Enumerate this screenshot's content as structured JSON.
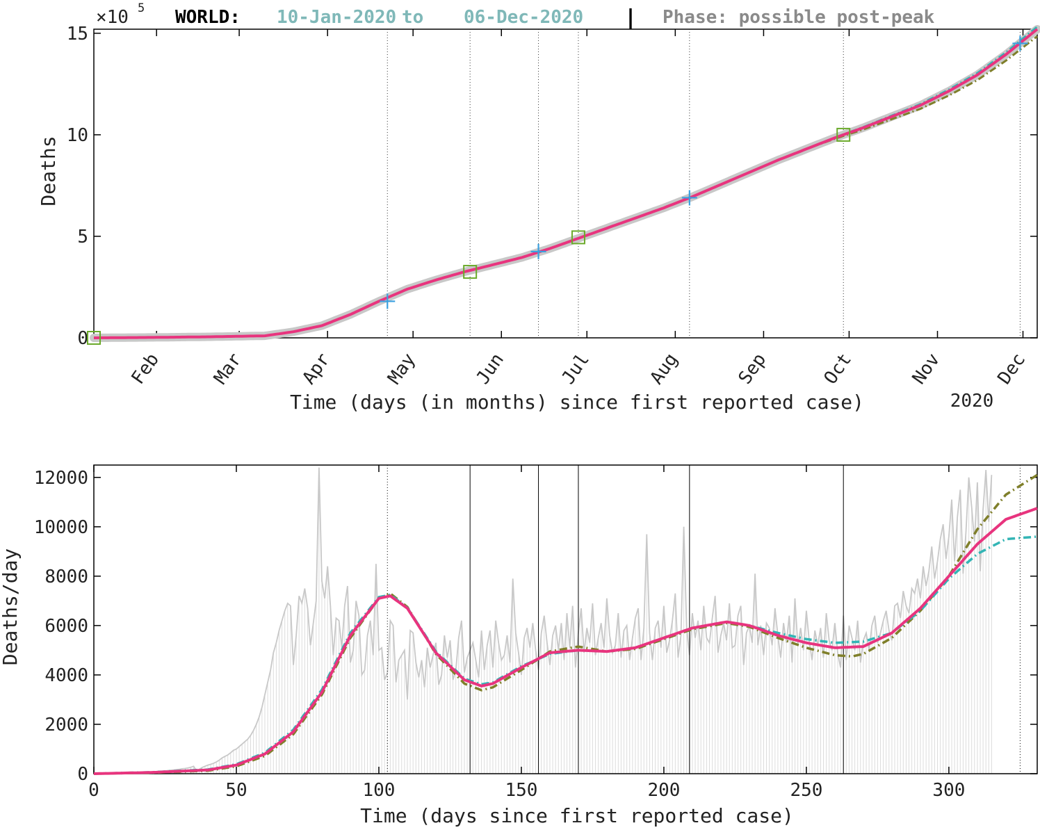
{
  "header": {
    "multiplier_base": "×10",
    "multiplier_exp": "5",
    "region": "WORLD:",
    "range_start": "10-Jan-2020",
    "range_to": "to",
    "range_end": "06-Dec-2020",
    "separator": "|",
    "phase": "Phase: possible post-peak"
  },
  "colors": {
    "fit_magenta": "#e8347e",
    "cyan_dashdot": "#33b5b5",
    "olive_dashdot": "#7f7f2a",
    "raw_gray": "#c8c8c8",
    "marker_plus": "#3aa0e0",
    "marker_square": "#6aaa2a",
    "title_teal": "#7fb8b8",
    "phase_gray": "#8a8a8a"
  },
  "chart_data": [
    {
      "type": "line",
      "title": "",
      "xlabel": "Time (days (in months) since first reported case)",
      "ylabel": "Deaths",
      "y_multiplier": "×10^5",
      "year_label": "2020",
      "xlim": [
        0,
        331
      ],
      "ylim": [
        0,
        15.2
      ],
      "month_ticks": [
        {
          "label": "Feb",
          "day": 22
        },
        {
          "label": "Mar",
          "day": 51
        },
        {
          "label": "Apr",
          "day": 82
        },
        {
          "label": "May",
          "day": 112
        },
        {
          "label": "Jun",
          "day": 143
        },
        {
          "label": "Jul",
          "day": 173
        },
        {
          "label": "Aug",
          "day": 204
        },
        {
          "label": "Sep",
          "day": 235
        },
        {
          "label": "Oct",
          "day": 265
        },
        {
          "label": "Nov",
          "day": 296
        },
        {
          "label": "Dec",
          "day": 326
        }
      ],
      "yticks": [
        0,
        5,
        10,
        15
      ],
      "grid": false,
      "phase_lines": [
        103,
        132,
        156,
        170,
        209,
        263,
        325
      ],
      "series": [
        {
          "x": [
            0,
            20,
            40,
            60,
            70,
            80,
            90,
            100,
            110,
            120,
            130,
            140,
            150,
            160,
            170,
            180,
            190,
            200,
            210,
            220,
            230,
            240,
            250,
            260,
            270,
            280,
            290,
            300,
            310,
            320,
            331
          ],
          "y": [
            0,
            0.02,
            0.05,
            0.1,
            0.3,
            0.6,
            1.15,
            1.8,
            2.4,
            2.85,
            3.25,
            3.6,
            3.95,
            4.4,
            4.9,
            5.4,
            5.9,
            6.4,
            6.95,
            7.55,
            8.15,
            8.75,
            9.3,
            9.85,
            10.35,
            10.9,
            11.45,
            12.15,
            12.95,
            13.95,
            15.2
          ]
        }
      ],
      "markers_plus": [
        {
          "x": 103,
          "y": 1.8
        },
        {
          "x": 156,
          "y": 4.25
        },
        {
          "x": 209,
          "y": 6.9
        },
        {
          "x": 325,
          "y": 14.5
        }
      ],
      "markers_square": [
        {
          "x": 0,
          "y": 0
        },
        {
          "x": 132,
          "y": 3.25
        },
        {
          "x": 170,
          "y": 4.95
        },
        {
          "x": 263,
          "y": 10.0
        }
      ]
    },
    {
      "type": "line",
      "title": "",
      "xlabel": "Time (days since first reported case)",
      "ylabel": "Deaths/day",
      "xlim": [
        0,
        331
      ],
      "ylim": [
        0,
        12500
      ],
      "xticks": [
        0,
        50,
        100,
        150,
        200,
        250,
        300
      ],
      "yticks": [
        0,
        2000,
        4000,
        6000,
        8000,
        10000,
        12000
      ],
      "grid": false,
      "phase_lines": [
        103,
        132,
        156,
        170,
        209,
        263,
        325
      ],
      "series": [
        {
          "x": [
            0,
            20,
            40,
            50,
            60,
            70,
            80,
            90,
            100,
            104,
            110,
            120,
            130,
            136,
            140,
            150,
            160,
            170,
            180,
            190,
            200,
            210,
            222,
            230,
            240,
            250,
            260,
            270,
            280,
            290,
            300,
            310,
            320,
            331
          ],
          "y": [
            0,
            50,
            150,
            350,
            800,
            1700,
            3300,
            5600,
            7100,
            7200,
            6700,
            4900,
            3800,
            3550,
            3650,
            4300,
            4900,
            5000,
            4950,
            5100,
            5500,
            5900,
            6150,
            6000,
            5600,
            5300,
            5100,
            5150,
            5700,
            6700,
            8000,
            9300,
            10300,
            10750
          ]
        },
        {
          "x": [
            230,
            240,
            250,
            260,
            270,
            280,
            290,
            300,
            310,
            320,
            331
          ],
          "y": [
            6000,
            5700,
            5450,
            5300,
            5350,
            5700,
            6600,
            7900,
            8900,
            9500,
            9600
          ]
        },
        {
          "x": [
            230,
            240,
            250,
            260,
            266,
            270,
            280,
            290,
            300,
            310,
            320,
            331
          ],
          "y": [
            5950,
            5500,
            5100,
            4800,
            4750,
            4850,
            5500,
            6600,
            8000,
            9900,
            11300,
            12100
          ]
        }
      ],
      "raw_daily": [
        0,
        0,
        0,
        0,
        0,
        0,
        0,
        0,
        0,
        0,
        0,
        0,
        10,
        15,
        20,
        25,
        30,
        40,
        45,
        50,
        60,
        70,
        80,
        90,
        100,
        110,
        130,
        140,
        150,
        165,
        180,
        200,
        210,
        230,
        260,
        300,
        120,
        180,
        250,
        300,
        350,
        380,
        420,
        480,
        550,
        640,
        700,
        760,
        850,
        950,
        1000,
        1100,
        1200,
        1300,
        1400,
        1550,
        1750,
        2000,
        2300,
        2700,
        3200,
        3700,
        4200,
        4900,
        5300,
        5800,
        6200,
        6600,
        6900,
        6800,
        4400,
        5600,
        7200,
        6900,
        7500,
        6700,
        5200,
        6100,
        7000,
        12400,
        7800,
        7100,
        8400,
        6800,
        4800,
        6300,
        6200,
        5100,
        6800,
        7600,
        4500,
        5000,
        7000,
        6400,
        4000,
        4200,
        5600,
        6200,
        4800,
        8500,
        5000,
        5100,
        3800,
        4100,
        6200,
        6000,
        3700,
        4600,
        4800,
        5000,
        3000,
        5800,
        5700,
        4500,
        3900,
        4600,
        3500,
        5100,
        4300,
        4800,
        5300,
        3600,
        4000,
        5600,
        4700,
        5400,
        3800,
        4200,
        5500,
        6200,
        4100,
        4700,
        5000,
        5300,
        4600,
        3900,
        5800,
        4200,
        5200,
        5800,
        4300,
        6200,
        5300,
        4600,
        4800,
        5600,
        4500,
        7900,
        5700,
        4900,
        4000,
        5500,
        5900,
        5100,
        6100,
        5000,
        4200,
        5700,
        6400,
        5300,
        4400,
        5600,
        6000,
        5000,
        6100,
        4600,
        6500,
        5100,
        6800,
        4300,
        5700,
        6700,
        4900,
        5900,
        5300,
        6900,
        4800,
        5500,
        6100,
        5100,
        7100,
        5600,
        4900,
        5200,
        6500,
        4700,
        5800,
        6000,
        4600,
        5500,
        6300,
        6700,
        4600,
        5900,
        9700,
        5700,
        4600,
        5900,
        6200,
        5100,
        6800,
        4900,
        5400,
        6200,
        7300,
        4700,
        5600,
        10000,
        5900,
        4800,
        6500,
        5500,
        6200,
        5000,
        6800,
        5500,
        5300,
        6300,
        7200,
        4900,
        5600,
        6100,
        5400,
        6900,
        5100,
        5200,
        6400,
        6800,
        4400,
        5700,
        6000,
        5300,
        8100,
        5200,
        6000,
        4800,
        6100,
        5900,
        5200,
        6700,
        5600,
        4700,
        6100,
        5300,
        6400,
        4500,
        7100,
        5200,
        5900,
        5000,
        6600,
        5400,
        4600,
        5800,
        5200,
        5900,
        4700,
        6500,
        5400,
        5000,
        6100,
        4900,
        4300,
        6400,
        4600,
        6000,
        5500,
        5000,
        6200,
        4500,
        5400,
        5700,
        5000,
        6000,
        6400,
        5300,
        5700,
        6200,
        6600,
        5800,
        5400,
        6800,
        6900,
        6300,
        7400,
        6800,
        6500,
        7500,
        7300,
        7900,
        7100,
        8400,
        7600,
        8200,
        9200,
        7900,
        8600,
        9500,
        10100,
        8700,
        9600,
        11100,
        8600,
        10400,
        11500,
        8100,
        9800,
        12000,
        10800,
        9400,
        11800,
        8200,
        10700,
        12300,
        10200,
        12100
      ]
    }
  ]
}
